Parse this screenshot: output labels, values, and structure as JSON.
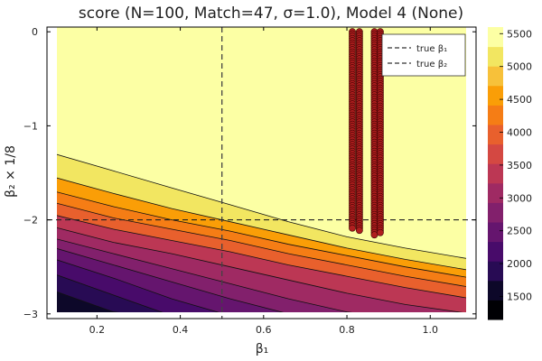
{
  "chart_data": {
    "type": "heatmap",
    "subtype": "filled-contour",
    "title": "score (N=100, Match=47, σ=1.0), Model 4 (None)",
    "xlabel": "β₁",
    "ylabel": "β₂ × 1/8",
    "xlim": [
      0.08,
      1.11
    ],
    "ylim": [
      -3.05,
      0.05
    ],
    "x_ticks": [
      0.2,
      0.4,
      0.6,
      0.8,
      1.0
    ],
    "x_tick_labels": [
      "0.2",
      "0.4",
      "0.6",
      "0.8",
      "1.0"
    ],
    "y_ticks": [
      0,
      -1,
      -2,
      -3
    ],
    "y_tick_labels": [
      "0",
      "−1",
      "−2",
      "−3"
    ],
    "colorbar": {
      "min": 1150,
      "max": 5600,
      "ticks": [
        1500,
        2000,
        2500,
        3000,
        3500,
        4000,
        4500,
        5000,
        5500
      ],
      "tick_labels": [
        "1500",
        "2000",
        "2500",
        "3000",
        "3500",
        "4000",
        "4500",
        "5000",
        "5500"
      ],
      "colors": [
        "#000004",
        "#0d0829",
        "#280b54",
        "#480b6a",
        "#65156e",
        "#82206c",
        "#9f2a63",
        "#bc3754",
        "#d44842",
        "#e8602d",
        "#f57d15",
        "#fa9e07",
        "#f7c13a",
        "#f2e661",
        "#fcffa4"
      ]
    },
    "contour_levels": [
      {
        "value": 5200,
        "y_at_x": [
          -1.3,
          -1.48,
          -1.66,
          -1.84,
          -2.02,
          -2.18,
          -2.3,
          -2.42
        ]
      },
      {
        "value": 4700,
        "y_at_x": [
          -1.55,
          -1.72,
          -1.88,
          -2.02,
          -2.16,
          -2.3,
          -2.42,
          -2.54
        ]
      },
      {
        "value": 4300,
        "y_at_x": [
          -1.7,
          -1.86,
          -2.0,
          -2.12,
          -2.26,
          -2.38,
          -2.5,
          -2.62
        ]
      },
      {
        "value": 3900,
        "y_at_x": [
          -1.82,
          -1.98,
          -2.1,
          -2.22,
          -2.36,
          -2.48,
          -2.6,
          -2.72
        ]
      },
      {
        "value": 3500,
        "y_at_x": [
          -1.95,
          -2.1,
          -2.22,
          -2.34,
          -2.48,
          -2.6,
          -2.72,
          -2.84
        ]
      },
      {
        "value": 3100,
        "y_at_x": [
          -2.08,
          -2.24,
          -2.36,
          -2.5,
          -2.64,
          -2.78,
          -2.9,
          -3.0
        ]
      },
      {
        "value": 2700,
        "y_at_x": [
          -2.2,
          -2.36,
          -2.52,
          -2.68,
          -2.84,
          -2.98,
          -3.05,
          -3.05
        ]
      },
      {
        "value": 2400,
        "y_at_x": [
          -2.3,
          -2.48,
          -2.66,
          -2.84,
          -3.0,
          -3.05,
          -3.05,
          -3.05
        ]
      },
      {
        "value": 2100,
        "y_at_x": [
          -2.42,
          -2.62,
          -2.84,
          -3.02,
          -3.05,
          -3.05,
          -3.05,
          -3.05
        ]
      },
      {
        "value": 1800,
        "y_at_x": [
          -2.58,
          -2.8,
          -3.02,
          -3.05,
          -3.05,
          -3.05,
          -3.05,
          -3.05
        ]
      },
      {
        "value": 1500,
        "y_at_x": [
          -2.76,
          -2.98,
          -3.05,
          -3.05,
          -3.05,
          -3.05,
          -3.05,
          -3.05
        ]
      }
    ],
    "contour_x": [
      0.1,
      0.24,
      0.38,
      0.52,
      0.66,
      0.8,
      0.94,
      1.1
    ],
    "reference_lines": [
      {
        "name": "true β₁",
        "orientation": "vertical",
        "value": 0.5
      },
      {
        "name": "true β₂",
        "orientation": "horizontal",
        "value": -2.0
      }
    ],
    "scatter_series": [
      {
        "x": 0.813,
        "y_from": -2.1,
        "y_to": 0.0
      },
      {
        "x": 0.83,
        "y_from": -2.12,
        "y_to": 0.0
      },
      {
        "x": 0.866,
        "y_from": -2.16,
        "y_to": 0.0
      },
      {
        "x": 0.88,
        "y_from": -2.15,
        "y_to": 0.0
      }
    ],
    "legend": {
      "position": "top-right",
      "entries": [
        "true β₁",
        "true β₂"
      ]
    },
    "grid": false
  }
}
